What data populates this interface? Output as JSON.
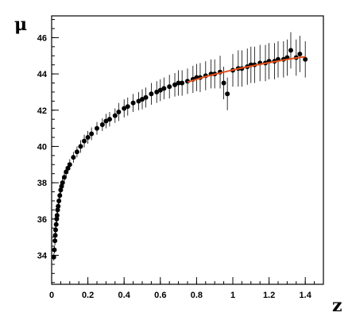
{
  "chart_data": {
    "type": "scatter",
    "title": "",
    "xlabel": "z",
    "ylabel": "μ",
    "xlim": [
      0,
      1.5
    ],
    "ylim": [
      32.4,
      47.2
    ],
    "xticks": [
      0,
      0.2,
      0.4,
      0.6,
      0.8,
      1,
      1.2,
      1.4
    ],
    "xtick_labels": [
      "0",
      "0.2",
      "0.4",
      "0.6",
      "0.8",
      "1",
      "1.2",
      "1.4"
    ],
    "yticks": [
      34,
      36,
      38,
      40,
      42,
      44,
      46
    ],
    "ytick_labels": [
      "34",
      "36",
      "38",
      "40",
      "42",
      "44",
      "46"
    ],
    "grid": false,
    "legend": "none",
    "colors": {
      "points": "#000000",
      "fit_line": "#e8521e",
      "axes": "#000000"
    },
    "series": [
      {
        "kind": "points_with_error_bars",
        "x": [
          0.012,
          0.015,
          0.018,
          0.02,
          0.022,
          0.025,
          0.028,
          0.03,
          0.033,
          0.036,
          0.04,
          0.045,
          0.05,
          0.055,
          0.06,
          0.07,
          0.08,
          0.09,
          0.1,
          0.12,
          0.14,
          0.16,
          0.18,
          0.2,
          0.22,
          0.25,
          0.28,
          0.3,
          0.32,
          0.35,
          0.37,
          0.4,
          0.42,
          0.45,
          0.48,
          0.5,
          0.52,
          0.55,
          0.58,
          0.6,
          0.62,
          0.65,
          0.68,
          0.7,
          0.72,
          0.75,
          0.78,
          0.8,
          0.82,
          0.85,
          0.88,
          0.9,
          0.93,
          0.95,
          0.97,
          1.0,
          1.03,
          1.05,
          1.08,
          1.1,
          1.12,
          1.15,
          1.18,
          1.2,
          1.23,
          1.25,
          1.28,
          1.3,
          1.32,
          1.35,
          1.37,
          1.4
        ],
        "y": [
          33.9,
          34.3,
          34.8,
          35.1,
          35.4,
          35.7,
          36.0,
          36.2,
          36.5,
          36.7,
          37.0,
          37.3,
          37.6,
          37.8,
          38.0,
          38.3,
          38.6,
          38.8,
          39.0,
          39.4,
          39.7,
          40.0,
          40.3,
          40.5,
          40.7,
          41.0,
          41.2,
          41.4,
          41.5,
          41.7,
          41.9,
          42.1,
          42.2,
          42.4,
          42.5,
          42.6,
          42.7,
          42.9,
          43.0,
          43.1,
          43.2,
          43.3,
          43.4,
          43.5,
          43.5,
          43.6,
          43.7,
          43.8,
          43.8,
          43.9,
          44.0,
          44.0,
          44.1,
          43.5,
          42.9,
          44.2,
          44.3,
          44.3,
          44.4,
          44.5,
          44.5,
          44.6,
          44.6,
          44.7,
          44.7,
          44.8,
          44.8,
          44.9,
          45.3,
          44.9,
          45.1,
          44.8
        ],
        "err": [
          0.2,
          0.2,
          0.25,
          0.2,
          0.25,
          0.25,
          0.2,
          0.25,
          0.25,
          0.25,
          0.3,
          0.3,
          0.3,
          0.3,
          0.3,
          0.3,
          0.3,
          0.3,
          0.3,
          0.3,
          0.3,
          0.35,
          0.35,
          0.35,
          0.35,
          0.35,
          0.35,
          0.4,
          0.4,
          0.4,
          0.5,
          0.5,
          0.5,
          0.5,
          0.5,
          0.55,
          0.55,
          0.6,
          0.6,
          0.6,
          0.6,
          0.65,
          0.65,
          0.7,
          0.7,
          0.7,
          0.75,
          0.75,
          0.8,
          0.8,
          0.8,
          0.8,
          0.9,
          0.9,
          0.9,
          0.9,
          1.0,
          1.0,
          1.0,
          1.0,
          1.0,
          1.0,
          1.0,
          1.0,
          1.0,
          1.0,
          1.0,
          1.0,
          1.0,
          1.0,
          1.0,
          1.0
        ]
      },
      {
        "kind": "fit_line",
        "x": [
          0.75,
          0.8,
          0.85,
          0.9,
          0.95,
          1.0,
          1.05,
          1.1,
          1.15,
          1.2,
          1.25,
          1.3,
          1.35,
          1.4
        ],
        "y": [
          43.55,
          43.7,
          43.85,
          43.98,
          44.1,
          44.22,
          44.33,
          44.43,
          44.53,
          44.62,
          44.71,
          44.8,
          44.88,
          44.95
        ]
      }
    ]
  }
}
